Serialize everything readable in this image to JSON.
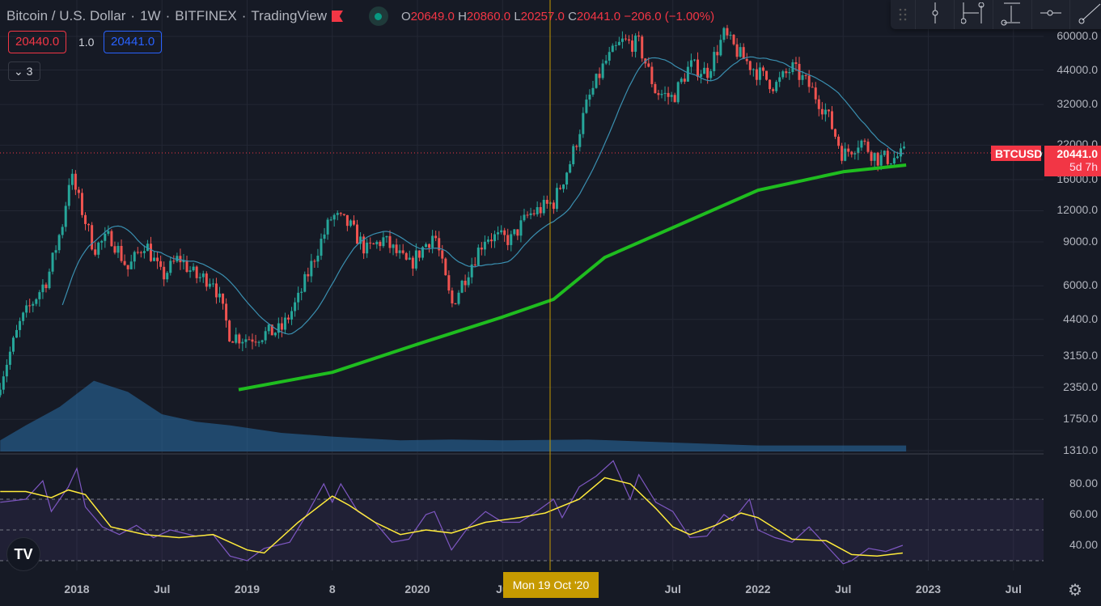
{
  "header": {
    "title": "Bitcoin / U.S. Dollar",
    "interval": "1W",
    "exchange": "BITFINEX",
    "source": "TradingView",
    "open_label": "O",
    "open": "20649.0",
    "high_label": "H",
    "high": "20860.0",
    "low_label": "L",
    "low": "20257.0",
    "close_label": "C",
    "close": "20441.0",
    "change": "−206.0 (−1.00%)"
  },
  "bid": "20440.0",
  "spread": "1.0",
  "ask": "20441.0",
  "indicators_toggle": "3",
  "price_tag": {
    "symbol": "BTCUSD",
    "price": "20441.0",
    "countdown": "5d 7h"
  },
  "crosshair_date": "Mon 19 Oct '20",
  "price_axis": [
    "60000.0",
    "44000.0",
    "32000.0",
    "22000.0",
    "16000.0",
    "12000.0",
    "9000.0",
    "6000.0",
    "4400.0",
    "3150.0",
    "2350.0",
    "1750.0",
    "1310.0"
  ],
  "rsi_axis": [
    "80.00",
    "60.00",
    "40.00"
  ],
  "time_axis": [
    {
      "label": "2018",
      "t": 2018
    },
    {
      "label": "Jul",
      "t": 2018.5
    },
    {
      "label": "2019",
      "t": 2019
    },
    {
      "label": "8",
      "t": 2019.5
    },
    {
      "label": "2020",
      "t": 2020
    },
    {
      "label": "Ju",
      "t": 2020.5
    },
    {
      "label": "Jul",
      "t": 2021.5
    },
    {
      "label": "2022",
      "t": 2022
    },
    {
      "label": "Jul",
      "t": 2022.5
    },
    {
      "label": "2023",
      "t": 2023
    },
    {
      "label": "Jul",
      "t": 2023.5
    }
  ],
  "colors": {
    "up": "#26a69a",
    "down": "#ef5350",
    "ma20": "#3a8fb0",
    "ma200": "#1fbd1f",
    "rsi": "#7e57c2",
    "rsi_ma": "#ffeb3b",
    "crosshair": "#c69a00"
  },
  "chart_data": {
    "type": "candlestick",
    "scale": "log",
    "ylim": [
      1310,
      60000
    ],
    "xlim": [
      2017.55,
      2023.75
    ],
    "price": [
      [
        2017.55,
        2500
      ],
      [
        2017.67,
        4300
      ],
      [
        2017.83,
        6500
      ],
      [
        2017.92,
        11000
      ],
      [
        2017.96,
        17000
      ],
      [
        2018.0,
        14000
      ],
      [
        2018.1,
        8500
      ],
      [
        2018.2,
        9500
      ],
      [
        2018.3,
        7000
      ],
      [
        2018.4,
        9000
      ],
      [
        2018.5,
        6500
      ],
      [
        2018.6,
        7800
      ],
      [
        2018.7,
        6500
      ],
      [
        2018.8,
        6400
      ],
      [
        2018.9,
        3800
      ],
      [
        2019.0,
        3700
      ],
      [
        2019.2,
        4000
      ],
      [
        2019.3,
        5300
      ],
      [
        2019.4,
        8000
      ],
      [
        2019.5,
        11500
      ],
      [
        2019.6,
        10500
      ],
      [
        2019.7,
        8300
      ],
      [
        2019.8,
        9200
      ],
      [
        2019.95,
        7200
      ],
      [
        2020.1,
        9800
      ],
      [
        2020.2,
        5000
      ],
      [
        2020.3,
        7000
      ],
      [
        2020.4,
        9500
      ],
      [
        2020.55,
        9200
      ],
      [
        2020.65,
        11500
      ],
      [
        2020.8,
        13000
      ],
      [
        2020.9,
        19000
      ],
      [
        2021.0,
        33000
      ],
      [
        2021.1,
        47000
      ],
      [
        2021.2,
        57000
      ],
      [
        2021.3,
        56000
      ],
      [
        2021.4,
        36000
      ],
      [
        2021.5,
        34000
      ],
      [
        2021.6,
        46000
      ],
      [
        2021.7,
        43000
      ],
      [
        2021.8,
        61000
      ],
      [
        2021.9,
        50000
      ],
      [
        2022.0,
        43000
      ],
      [
        2022.1,
        38000
      ],
      [
        2022.2,
        45000
      ],
      [
        2022.3,
        38000
      ],
      [
        2022.4,
        30000
      ],
      [
        2022.5,
        20000
      ],
      [
        2022.6,
        23000
      ],
      [
        2022.7,
        19500
      ],
      [
        2022.8,
        19500
      ],
      [
        2022.87,
        20441
      ]
    ],
    "ma200": [
      [
        2018.95,
        2300
      ],
      [
        2019.5,
        2700
      ],
      [
        2020.0,
        3500
      ],
      [
        2020.5,
        4500
      ],
      [
        2020.8,
        5300
      ],
      [
        2021.1,
        7800
      ],
      [
        2021.6,
        11000
      ],
      [
        2022.0,
        14500
      ],
      [
        2022.5,
        17200
      ],
      [
        2022.87,
        18300
      ]
    ],
    "volume": [
      [
        2017.55,
        0.15
      ],
      [
        2017.7,
        0.35
      ],
      [
        2017.9,
        0.6
      ],
      [
        2018.1,
        0.95
      ],
      [
        2018.3,
        0.8
      ],
      [
        2018.5,
        0.5
      ],
      [
        2018.7,
        0.4
      ],
      [
        2018.9,
        0.35
      ],
      [
        2019.2,
        0.25
      ],
      [
        2019.5,
        0.2
      ],
      [
        2019.9,
        0.15
      ],
      [
        2020.2,
        0.16
      ],
      [
        2020.5,
        0.15
      ],
      [
        2021.0,
        0.16
      ],
      [
        2021.5,
        0.12
      ],
      [
        2022.0,
        0.08
      ],
      [
        2022.87,
        0.08
      ]
    ],
    "rsi": [
      [
        2017.55,
        68
      ],
      [
        2017.7,
        70
      ],
      [
        2017.8,
        82
      ],
      [
        2017.85,
        62
      ],
      [
        2017.95,
        78
      ],
      [
        2018.0,
        90
      ],
      [
        2018.05,
        65
      ],
      [
        2018.15,
        52
      ],
      [
        2018.25,
        47
      ],
      [
        2018.35,
        53
      ],
      [
        2018.45,
        45
      ],
      [
        2018.55,
        50
      ],
      [
        2018.7,
        46
      ],
      [
        2018.8,
        47
      ],
      [
        2018.9,
        33
      ],
      [
        2019.0,
        30
      ],
      [
        2019.1,
        38
      ],
      [
        2019.25,
        42
      ],
      [
        2019.35,
        60
      ],
      [
        2019.45,
        80
      ],
      [
        2019.5,
        68
      ],
      [
        2019.55,
        80
      ],
      [
        2019.65,
        62
      ],
      [
        2019.75,
        55
      ],
      [
        2019.85,
        42
      ],
      [
        2019.95,
        44
      ],
      [
        2020.05,
        60
      ],
      [
        2020.1,
        62
      ],
      [
        2020.2,
        37
      ],
      [
        2020.3,
        52
      ],
      [
        2020.4,
        62
      ],
      [
        2020.5,
        55
      ],
      [
        2020.6,
        55
      ],
      [
        2020.7,
        62
      ],
      [
        2020.8,
        70
      ],
      [
        2020.85,
        58
      ],
      [
        2020.95,
        78
      ],
      [
        2021.05,
        85
      ],
      [
        2021.15,
        95
      ],
      [
        2021.25,
        70
      ],
      [
        2021.3,
        86
      ],
      [
        2021.4,
        68
      ],
      [
        2021.5,
        62
      ],
      [
        2021.6,
        45
      ],
      [
        2021.7,
        46
      ],
      [
        2021.8,
        60
      ],
      [
        2021.85,
        56
      ],
      [
        2021.95,
        70
      ],
      [
        2022.0,
        50
      ],
      [
        2022.1,
        45
      ],
      [
        2022.2,
        42
      ],
      [
        2022.3,
        52
      ],
      [
        2022.4,
        40
      ],
      [
        2022.5,
        28
      ],
      [
        2022.55,
        30
      ],
      [
        2022.65,
        38
      ],
      [
        2022.75,
        36
      ],
      [
        2022.85,
        40
      ]
    ],
    "rsi_ma": [
      [
        2017.55,
        75
      ],
      [
        2017.7,
        75
      ],
      [
        2017.85,
        71
      ],
      [
        2017.95,
        76
      ],
      [
        2018.05,
        73
      ],
      [
        2018.2,
        52
      ],
      [
        2018.4,
        47
      ],
      [
        2018.6,
        45
      ],
      [
        2018.8,
        47
      ],
      [
        2019.0,
        37
      ],
      [
        2019.1,
        35
      ],
      [
        2019.3,
        55
      ],
      [
        2019.5,
        72
      ],
      [
        2019.6,
        66
      ],
      [
        2019.75,
        55
      ],
      [
        2019.9,
        47
      ],
      [
        2020.05,
        50
      ],
      [
        2020.2,
        48
      ],
      [
        2020.4,
        55
      ],
      [
        2020.6,
        58
      ],
      [
        2020.75,
        61
      ],
      [
        2020.95,
        70
      ],
      [
        2021.1,
        84
      ],
      [
        2021.25,
        80
      ],
      [
        2021.4,
        64
      ],
      [
        2021.5,
        52
      ],
      [
        2021.6,
        47
      ],
      [
        2021.75,
        53
      ],
      [
        2021.9,
        61
      ],
      [
        2022.0,
        58
      ],
      [
        2022.2,
        44
      ],
      [
        2022.4,
        43
      ],
      [
        2022.55,
        34
      ],
      [
        2022.7,
        33
      ],
      [
        2022.85,
        35
      ]
    ],
    "rsi_bands": [
      30,
      50,
      70
    ]
  }
}
